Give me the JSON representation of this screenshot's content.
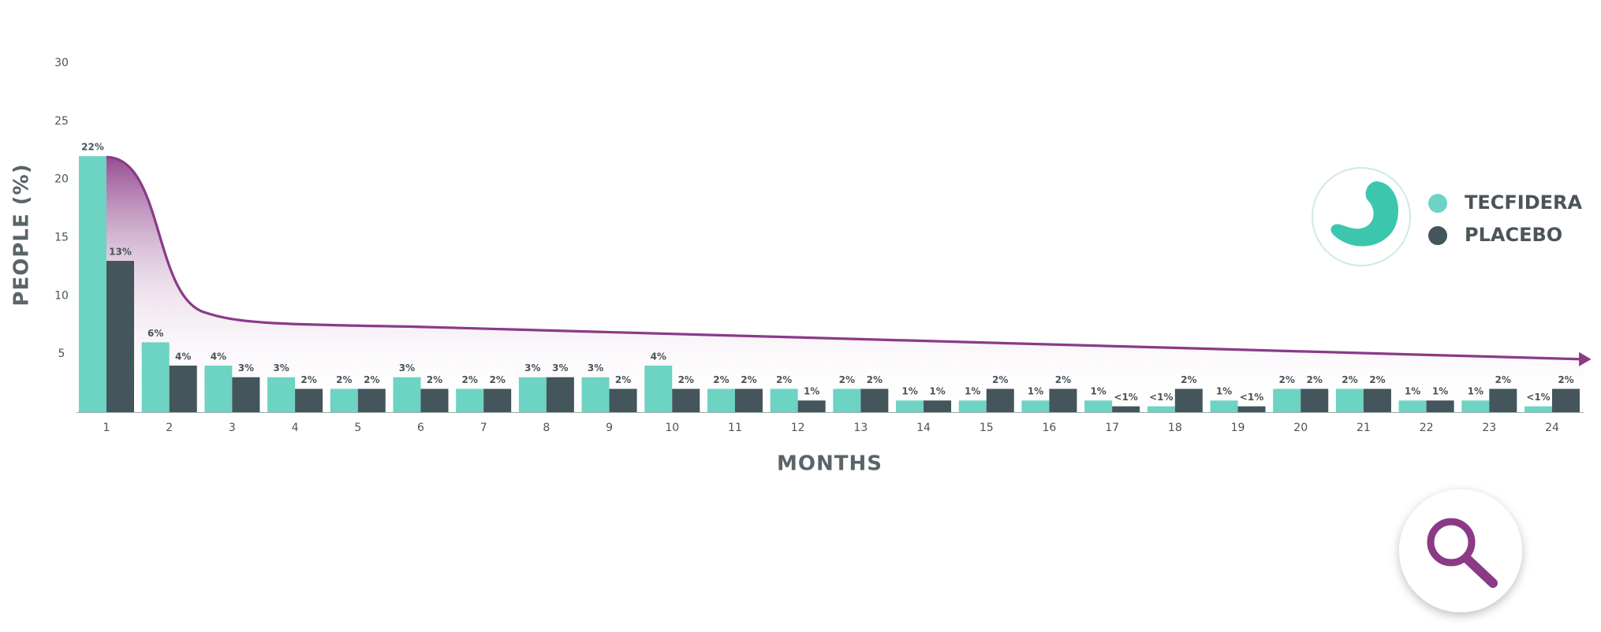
{
  "chart_data": {
    "type": "bar",
    "y_label": "PEOPLE (%)",
    "x_label": "MONTHS",
    "categories": [
      "1",
      "2",
      "3",
      "4",
      "5",
      "6",
      "7",
      "8",
      "9",
      "10",
      "11",
      "12",
      "13",
      "14",
      "15",
      "16",
      "17",
      "18",
      "19",
      "20",
      "21",
      "22",
      "23",
      "24"
    ],
    "series": [
      {
        "name": "TECFIDERA",
        "color": "#6dd3c3",
        "values": [
          22,
          6,
          4,
          3,
          2,
          3,
          2,
          3,
          3,
          4,
          2,
          2,
          2,
          1,
          1,
          1,
          1,
          0.5,
          1,
          2,
          2,
          1,
          1,
          0.5
        ],
        "value_labels": [
          "22%",
          "6%",
          "4%",
          "3%",
          "2%",
          "3%",
          "2%",
          "3%",
          "3%",
          "4%",
          "2%",
          "2%",
          "2%",
          "1%",
          "1%",
          "1%",
          "1%",
          "<1%",
          "1%",
          "2%",
          "2%",
          "1%",
          "1%",
          "<1%"
        ]
      },
      {
        "name": "PLACEBO",
        "color": "#44555c",
        "values": [
          13,
          4,
          3,
          2,
          2,
          2,
          2,
          3,
          2,
          2,
          2,
          1,
          2,
          1,
          2,
          2,
          0.5,
          2,
          0.5,
          2,
          2,
          1,
          2,
          2
        ],
        "value_labels": [
          "13%",
          "4%",
          "3%",
          "2%",
          "2%",
          "2%",
          "2%",
          "3%",
          "2%",
          "2%",
          "2%",
          "1%",
          "2%",
          "1%",
          "2%",
          "2%",
          "<1%",
          "2%",
          "<1%",
          "2%",
          "2%",
          "1%",
          "2%",
          "2%"
        ]
      }
    ],
    "ylim": [
      0,
      30
    ],
    "yticks": [
      5,
      10,
      15,
      20,
      25,
      30
    ],
    "grid": false
  }
}
